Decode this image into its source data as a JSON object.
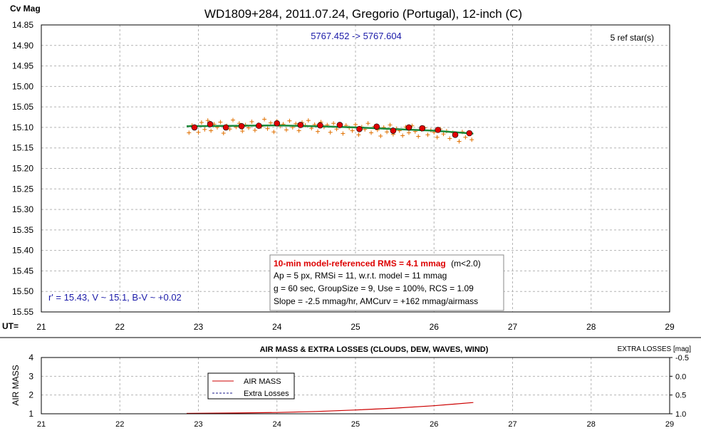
{
  "chart_data": [
    {
      "type": "scatter",
      "title": "WD1809+284, 2011.07.24, Gregorio (Portugal), 12-inch (C)",
      "ylabel": "Cv Mag",
      "xlabel": "UT=",
      "subtitle_date_range": "5767.452 -> 5767.604",
      "ref_stars": "5 ref star(s)",
      "star_info": "r' = 15.43, V ~ 15.1, B-V ~ +0.02",
      "xlim": [
        21,
        29
      ],
      "ylim": [
        14.85,
        15.55
      ],
      "y_inverted": true,
      "x_ticks": [
        "21",
        "22",
        "23",
        "24",
        "25",
        "26",
        "27",
        "28",
        "29"
      ],
      "y_ticks": [
        "14.85",
        "14.90",
        "14.95",
        "15.00",
        "15.05",
        "15.10",
        "15.15",
        "15.20",
        "15.25",
        "15.30",
        "15.35",
        "15.40",
        "15.45",
        "15.50",
        "15.55"
      ],
      "grid": true,
      "stats": {
        "rms_line": "10-min model-referenced RMS = 4.1 mmag",
        "rms_note": "(m<2.0)",
        "line2": "Ap = 5 px, RMSi = 11, w.r.t. model = 11 mmag",
        "line3": "g = 60 sec, GroupSize = 9, Use = 100%, RCS = 1.09",
        "line4": "Slope = -2.5 mmag/hr, AMCurv = +162 mmag/airmass"
      },
      "colors": {
        "raw": "#e07000",
        "avg": "#e00000",
        "fit": "#1a8a3a",
        "blue_text": "#1a1aa8",
        "red_text": "#dd0000"
      },
      "series": [
        {
          "type": "scatter",
          "marker": "plus",
          "x": [
            22.88,
            22.92,
            22.96,
            23.0,
            23.04,
            23.08,
            23.12,
            23.16,
            23.2,
            23.24,
            23.28,
            23.32,
            23.36,
            23.4,
            23.44,
            23.48,
            23.52,
            23.56,
            23.6,
            23.64,
            23.68,
            23.72,
            23.76,
            23.8,
            23.84,
            23.88,
            23.92,
            23.96,
            24.0,
            24.04,
            24.08,
            24.12,
            24.16,
            24.2,
            24.24,
            24.28,
            24.32,
            24.36,
            24.4,
            24.44,
            24.48,
            24.52,
            24.56,
            24.6,
            24.64,
            24.68,
            24.72,
            24.76,
            24.8,
            24.84,
            24.88,
            24.92,
            24.96,
            25.0,
            25.04,
            25.08,
            25.12,
            25.16,
            25.2,
            25.24,
            25.28,
            25.32,
            25.36,
            25.4,
            25.44,
            25.48,
            25.52,
            25.56,
            25.6,
            25.64,
            25.68,
            25.72,
            25.76,
            25.8,
            25.84,
            25.88,
            25.92,
            25.96,
            26.0,
            26.04,
            26.08,
            26.12,
            26.16,
            26.2,
            26.24,
            26.28,
            26.32,
            26.36,
            26.4,
            26.44,
            26.48
          ],
          "y": [
            15.113,
            15.095,
            15.102,
            15.112,
            15.088,
            15.105,
            15.083,
            15.108,
            15.092,
            15.1,
            15.087,
            15.114,
            15.096,
            15.104,
            15.082,
            15.099,
            15.09,
            15.109,
            15.094,
            15.101,
            15.086,
            15.107,
            15.093,
            15.098,
            15.08,
            15.103,
            15.089,
            15.111,
            15.085,
            15.097,
            15.092,
            15.106,
            15.084,
            15.1,
            15.091,
            15.108,
            15.088,
            15.095,
            15.083,
            15.102,
            15.093,
            15.11,
            15.087,
            15.099,
            15.094,
            15.112,
            15.09,
            15.104,
            15.097,
            15.115,
            15.095,
            15.101,
            15.108,
            15.093,
            15.118,
            15.099,
            15.105,
            15.09,
            15.113,
            15.098,
            15.106,
            15.121,
            15.1,
            15.111,
            15.094,
            15.117,
            15.103,
            15.108,
            15.12,
            15.099,
            15.113,
            15.096,
            15.11,
            15.122,
            15.105,
            15.101,
            15.118,
            15.107,
            15.112,
            15.124,
            15.104,
            15.116,
            15.109,
            15.127,
            15.113,
            15.119,
            15.134,
            15.111,
            15.124,
            15.116,
            15.13
          ]
        },
        {
          "type": "scatter",
          "marker": "circle",
          "x": [
            22.95,
            23.15,
            23.35,
            23.55,
            23.77,
            24.0,
            24.3,
            24.55,
            24.8,
            25.05,
            25.27,
            25.48,
            25.68,
            25.85,
            26.05,
            26.27,
            26.45
          ],
          "y": [
            15.1,
            15.092,
            15.1,
            15.097,
            15.096,
            15.09,
            15.094,
            15.095,
            15.094,
            15.104,
            15.098,
            15.108,
            15.1,
            15.102,
            15.106,
            15.118,
            15.114
          ]
        },
        {
          "type": "line",
          "x": [
            22.85,
            23.5,
            24.0,
            24.5,
            25.0,
            25.5,
            26.0,
            26.5
          ],
          "y": [
            15.097,
            15.096,
            15.095,
            15.097,
            15.1,
            15.104,
            15.108,
            15.115
          ]
        }
      ]
    },
    {
      "type": "line",
      "title": "AIR MASS & EXTRA LOSSES (CLOUDS, DEW, WAVES, WIND)",
      "ylabel": "AIR MASS",
      "y2label": "EXTRA LOSSES [mag]",
      "xlim": [
        21,
        29
      ],
      "ylim": [
        1,
        4
      ],
      "y2lim": [
        -0.5,
        1.0
      ],
      "x_ticks": [
        "21",
        "22",
        "23",
        "24",
        "25",
        "26",
        "27",
        "28",
        "29"
      ],
      "y_ticks": [
        "1",
        "2",
        "3",
        "4"
      ],
      "y2_ticks": [
        "-0.5",
        "0.0",
        "0.5",
        "1.0"
      ],
      "grid": true,
      "legend": {
        "placement": "top-left",
        "entries": [
          "AIR MASS",
          "Extra Losses"
        ]
      },
      "series": [
        {
          "name": "AIR MASS",
          "color": "#cc0000",
          "x": [
            22.85,
            23.5,
            24.0,
            24.5,
            25.0,
            25.5,
            26.0,
            26.5
          ],
          "y": [
            1.02,
            1.04,
            1.07,
            1.12,
            1.2,
            1.3,
            1.43,
            1.6
          ]
        },
        {
          "name": "Extra Losses",
          "color": "#1a1a8a",
          "x": [],
          "y": []
        }
      ]
    }
  ]
}
